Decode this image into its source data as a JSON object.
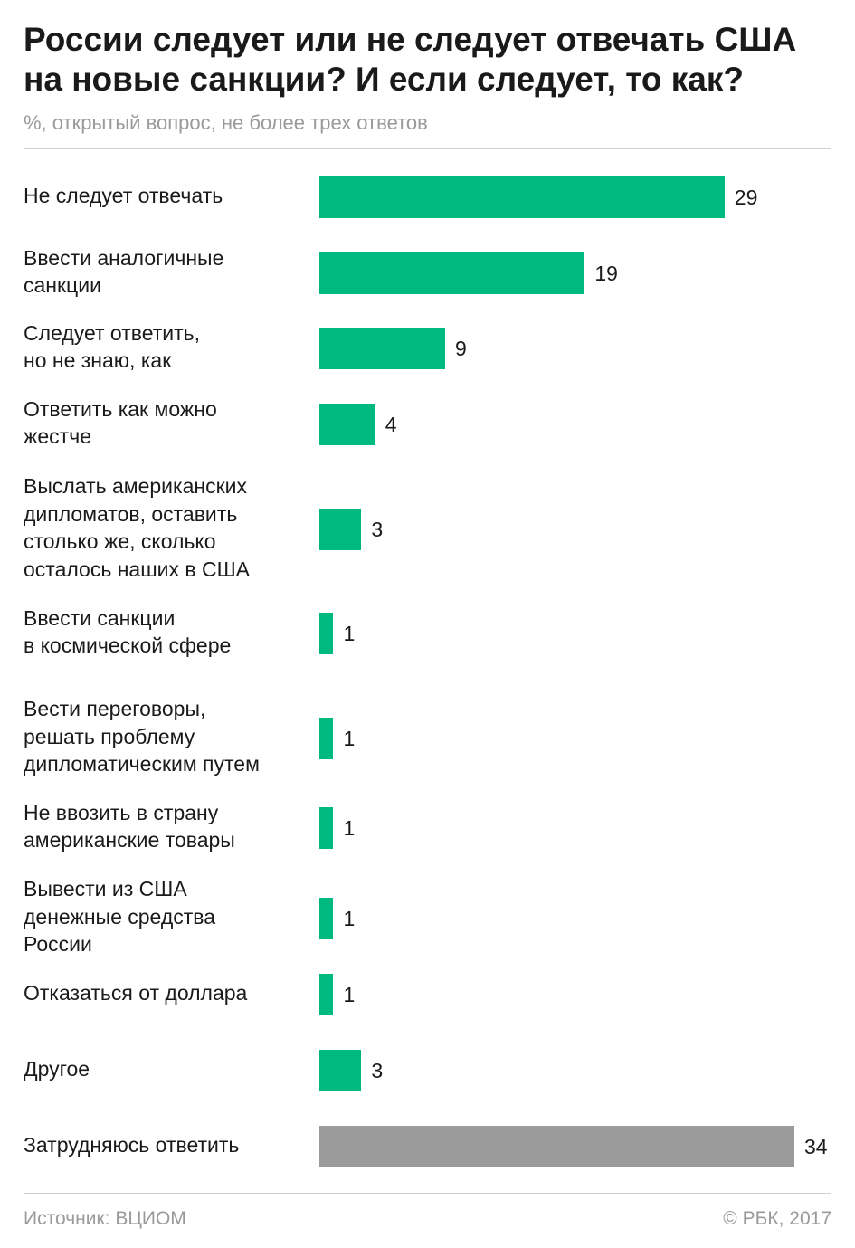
{
  "header": {
    "title": "России следует или не следует отвечать США на новые санкции? И если следует, то как?",
    "subtitle": "%, открытый вопрос, не более трех ответов"
  },
  "footer": {
    "source": "Источник: ВЦИОМ",
    "copyright": "© РБК, 2017"
  },
  "colors": {
    "primary_bar": "#00b97e",
    "difficult_bar": "#9b9b9b"
  },
  "chart_data": {
    "type": "bar",
    "orientation": "horizontal",
    "categories": [
      "Не следует отвечать",
      "Ввести аналогичные\nсанкции",
      "Следует ответить,\nно не знаю, как",
      "Ответить как можно\nжестче",
      "Выслать американских\nдипломатов, оставить\nстолько же, сколько\nосталось наших в США",
      "Ввести санкции\nв космической сфере",
      "Вести переговоры,\nрешать проблему\nдипломатическим путем",
      "Не ввозить в страну\nамериканские товары",
      "Вывести из США\nденежные средства\nРоссии",
      "Отказаться от доллара",
      "Другое",
      "Затрудняюсь ответить"
    ],
    "values": [
      29,
      19,
      9,
      4,
      3,
      1,
      1,
      1,
      1,
      1,
      3,
      34
    ],
    "bar_colors": [
      "primary_bar",
      "primary_bar",
      "primary_bar",
      "primary_bar",
      "primary_bar",
      "primary_bar",
      "primary_bar",
      "primary_bar",
      "primary_bar",
      "primary_bar",
      "primary_bar",
      "difficult_bar"
    ],
    "xlim": [
      0,
      34
    ],
    "grid": false,
    "legend": false,
    "data_labels": true
  }
}
